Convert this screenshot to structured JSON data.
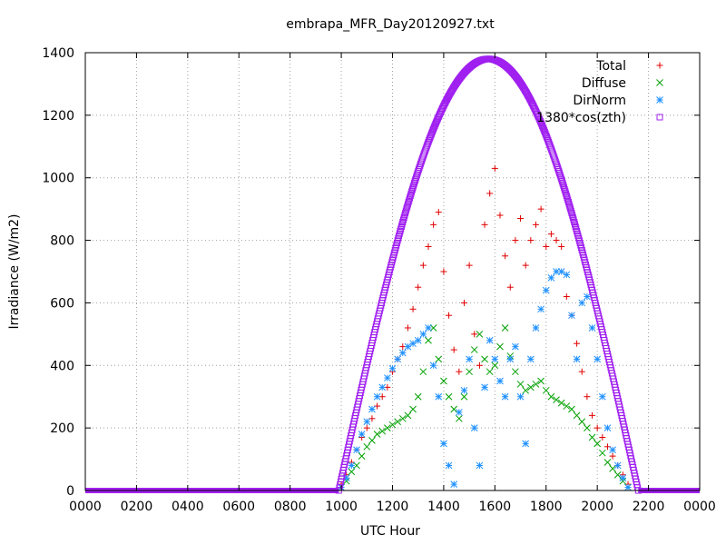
{
  "chart_data": {
    "type": "scatter",
    "title": "embrapa_MFR_Day20120927.txt",
    "xlabel": "UTC Hour",
    "ylabel": "Irradiance (W/m2)",
    "x_ticks": [
      "0000",
      "0200",
      "0400",
      "0600",
      "0800",
      "1000",
      "1200",
      "1400",
      "1600",
      "1800",
      "2000",
      "2200",
      "0000"
    ],
    "y_ticks": [
      0,
      200,
      400,
      600,
      800,
      1000,
      1200,
      1400
    ],
    "xlim": [
      0,
      24
    ],
    "ylim": [
      0,
      1400
    ],
    "grid": true,
    "legend_position": "top-right",
    "series": [
      {
        "name": "Total",
        "color": "#e00000",
        "marker": "plus",
        "points": [
          [
            10.0,
            20
          ],
          [
            10.2,
            50
          ],
          [
            10.4,
            90
          ],
          [
            10.6,
            130
          ],
          [
            10.8,
            170
          ],
          [
            11.0,
            200
          ],
          [
            11.2,
            230
          ],
          [
            11.4,
            270
          ],
          [
            11.6,
            300
          ],
          [
            11.8,
            330
          ],
          [
            12.0,
            380
          ],
          [
            12.2,
            420
          ],
          [
            12.4,
            460
          ],
          [
            12.6,
            520
          ],
          [
            12.8,
            580
          ],
          [
            13.0,
            650
          ],
          [
            13.2,
            720
          ],
          [
            13.4,
            780
          ],
          [
            13.6,
            850
          ],
          [
            13.8,
            890
          ],
          [
            14.0,
            700
          ],
          [
            14.2,
            560
          ],
          [
            14.4,
            450
          ],
          [
            14.6,
            380
          ],
          [
            14.8,
            600
          ],
          [
            15.0,
            720
          ],
          [
            15.2,
            500
          ],
          [
            15.4,
            400
          ],
          [
            15.6,
            850
          ],
          [
            15.8,
            950
          ],
          [
            16.0,
            1030
          ],
          [
            16.2,
            880
          ],
          [
            16.4,
            750
          ],
          [
            16.6,
            650
          ],
          [
            16.8,
            800
          ],
          [
            17.0,
            870
          ],
          [
            17.2,
            720
          ],
          [
            17.4,
            800
          ],
          [
            17.6,
            850
          ],
          [
            17.8,
            900
          ],
          [
            18.0,
            780
          ],
          [
            18.2,
            820
          ],
          [
            18.4,
            800
          ],
          [
            18.6,
            780
          ],
          [
            18.8,
            620
          ],
          [
            19.0,
            560
          ],
          [
            19.2,
            470
          ],
          [
            19.4,
            380
          ],
          [
            19.6,
            300
          ],
          [
            19.8,
            240
          ],
          [
            20.0,
            200
          ],
          [
            20.2,
            170
          ],
          [
            20.4,
            140
          ],
          [
            20.6,
            110
          ],
          [
            20.8,
            80
          ],
          [
            21.0,
            50
          ],
          [
            21.2,
            20
          ]
        ]
      },
      {
        "name": "Diffuse",
        "color": "#00a000",
        "marker": "cross",
        "points": [
          [
            10.0,
            10
          ],
          [
            10.2,
            30
          ],
          [
            10.4,
            60
          ],
          [
            10.6,
            80
          ],
          [
            10.8,
            110
          ],
          [
            11.0,
            140
          ],
          [
            11.2,
            160
          ],
          [
            11.4,
            180
          ],
          [
            11.6,
            190
          ],
          [
            11.8,
            200
          ],
          [
            12.0,
            210
          ],
          [
            12.2,
            220
          ],
          [
            12.4,
            230
          ],
          [
            12.6,
            240
          ],
          [
            12.8,
            260
          ],
          [
            13.0,
            300
          ],
          [
            13.2,
            380
          ],
          [
            13.4,
            480
          ],
          [
            13.6,
            520
          ],
          [
            13.8,
            420
          ],
          [
            14.0,
            350
          ],
          [
            14.2,
            300
          ],
          [
            14.4,
            260
          ],
          [
            14.6,
            230
          ],
          [
            14.8,
            300
          ],
          [
            15.0,
            380
          ],
          [
            15.2,
            450
          ],
          [
            15.4,
            500
          ],
          [
            15.6,
            420
          ],
          [
            15.8,
            380
          ],
          [
            16.0,
            400
          ],
          [
            16.2,
            460
          ],
          [
            16.4,
            520
          ],
          [
            16.6,
            430
          ],
          [
            16.8,
            380
          ],
          [
            17.0,
            340
          ],
          [
            17.2,
            320
          ],
          [
            17.4,
            330
          ],
          [
            17.6,
            340
          ],
          [
            17.8,
            350
          ],
          [
            18.0,
            320
          ],
          [
            18.2,
            300
          ],
          [
            18.4,
            290
          ],
          [
            18.6,
            280
          ],
          [
            18.8,
            270
          ],
          [
            19.0,
            260
          ],
          [
            19.2,
            240
          ],
          [
            19.4,
            220
          ],
          [
            19.6,
            200
          ],
          [
            19.8,
            170
          ],
          [
            20.0,
            150
          ],
          [
            20.2,
            120
          ],
          [
            20.4,
            90
          ],
          [
            20.6,
            70
          ],
          [
            20.8,
            50
          ],
          [
            21.0,
            30
          ],
          [
            21.2,
            10
          ]
        ]
      },
      {
        "name": "DirNorm",
        "color": "#1e90ff",
        "marker": "star",
        "points": [
          [
            10.0,
            10
          ],
          [
            10.2,
            40
          ],
          [
            10.4,
            80
          ],
          [
            10.6,
            130
          ],
          [
            10.8,
            180
          ],
          [
            11.0,
            220
          ],
          [
            11.2,
            260
          ],
          [
            11.4,
            300
          ],
          [
            11.6,
            330
          ],
          [
            11.8,
            360
          ],
          [
            12.0,
            390
          ],
          [
            12.2,
            420
          ],
          [
            12.4,
            440
          ],
          [
            12.6,
            460
          ],
          [
            12.8,
            470
          ],
          [
            13.0,
            480
          ],
          [
            13.2,
            500
          ],
          [
            13.4,
            520
          ],
          [
            13.6,
            400
          ],
          [
            13.8,
            300
          ],
          [
            14.0,
            150
          ],
          [
            14.2,
            80
          ],
          [
            14.4,
            20
          ],
          [
            14.6,
            250
          ],
          [
            14.8,
            320
          ],
          [
            15.0,
            420
          ],
          [
            15.2,
            200
          ],
          [
            15.4,
            80
          ],
          [
            15.6,
            330
          ],
          [
            15.8,
            480
          ],
          [
            16.0,
            420
          ],
          [
            16.2,
            350
          ],
          [
            16.4,
            300
          ],
          [
            16.6,
            420
          ],
          [
            16.8,
            460
          ],
          [
            17.0,
            300
          ],
          [
            17.2,
            150
          ],
          [
            17.4,
            420
          ],
          [
            17.6,
            520
          ],
          [
            17.8,
            580
          ],
          [
            18.0,
            640
          ],
          [
            18.2,
            680
          ],
          [
            18.4,
            700
          ],
          [
            18.6,
            700
          ],
          [
            18.8,
            690
          ],
          [
            19.0,
            560
          ],
          [
            19.2,
            420
          ],
          [
            19.4,
            600
          ],
          [
            19.6,
            620
          ],
          [
            19.8,
            520
          ],
          [
            20.0,
            420
          ],
          [
            20.2,
            300
          ],
          [
            20.4,
            200
          ],
          [
            20.6,
            130
          ],
          [
            20.8,
            80
          ],
          [
            21.0,
            40
          ],
          [
            21.2,
            10
          ]
        ]
      },
      {
        "name": "1380*cos(zth)",
        "color": "#a020f0",
        "marker": "square",
        "peak": 1380,
        "sunrise_hour": 9.9,
        "sunset_hour": 21.6,
        "noon_hour": 15.75
      }
    ]
  }
}
